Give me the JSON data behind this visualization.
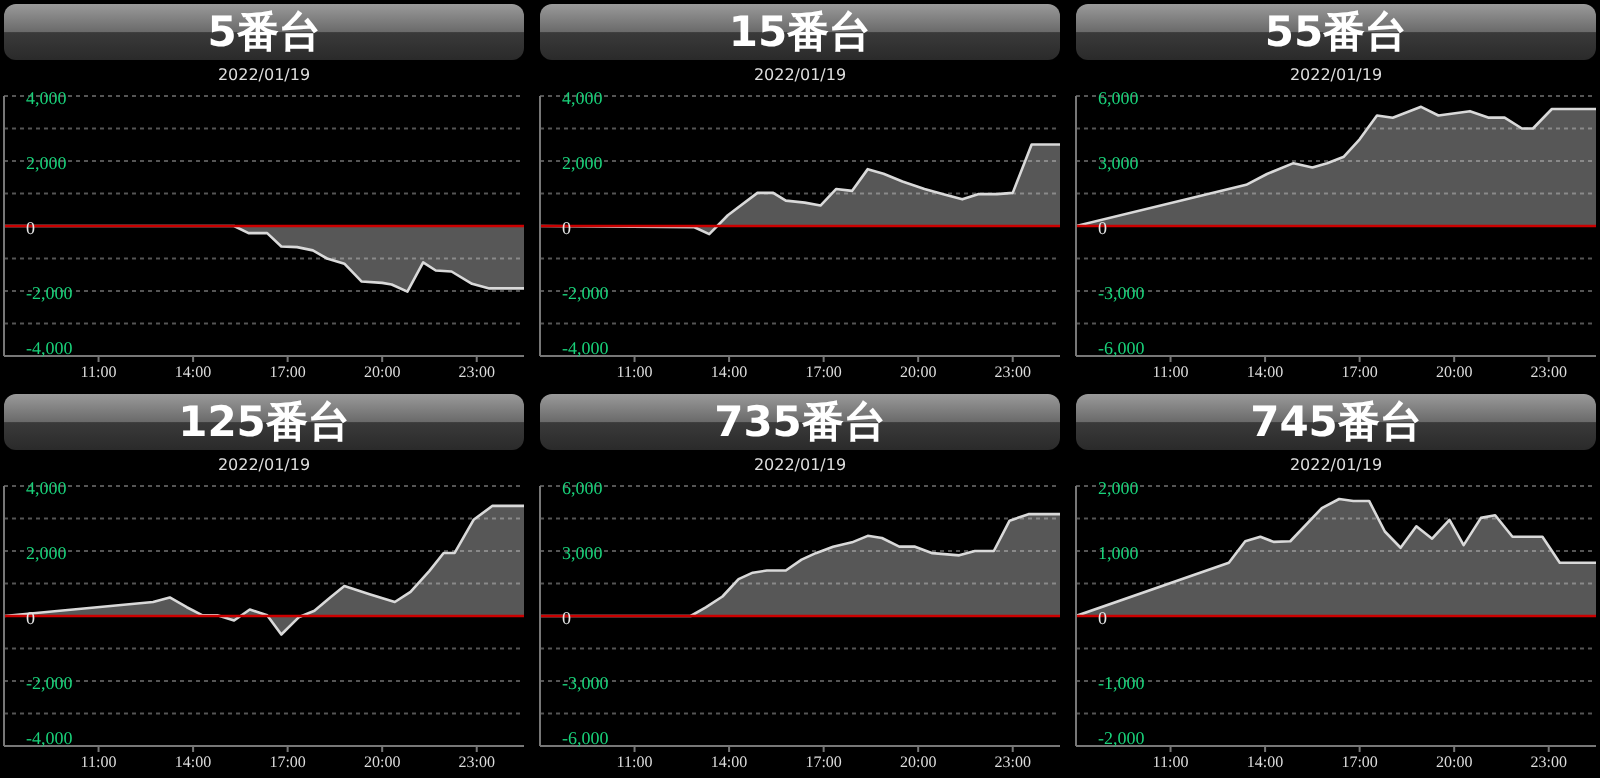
{
  "chart_data": [
    {
      "type": "area",
      "title": "5番台",
      "subtitle": "2022/01/19",
      "grid": "y",
      "xlim": [
        8,
        24.5
      ],
      "xticks": [
        {
          "value": 11,
          "label": "11:00"
        },
        {
          "value": 14,
          "label": "14:00"
        },
        {
          "value": 17,
          "label": "17:00"
        },
        {
          "value": 20,
          "label": "20:00"
        },
        {
          "value": 23,
          "label": "23:00"
        }
      ],
      "ylim": [
        -4000,
        4000
      ],
      "yticks": [
        {
          "value": -4000,
          "label": "-4,000"
        },
        {
          "value": -3000,
          "label": null
        },
        {
          "value": -2000,
          "label": "-2,000"
        },
        {
          "value": -1000,
          "label": null
        },
        {
          "value": 0,
          "label": "0"
        },
        {
          "value": 1000,
          "label": null
        },
        {
          "value": 2000,
          "label": "2,000"
        },
        {
          "value": 3000,
          "label": null
        },
        {
          "value": 4000,
          "label": "4,000"
        }
      ],
      "ref_lines": [
        {
          "axis": "y",
          "value": 0,
          "color": "#cc0000"
        }
      ],
      "series": [
        {
          "color": "#d9d9d9",
          "x": [
            8,
            15.3,
            15.76,
            16.35,
            16.8,
            17.3,
            17.8,
            18.25,
            18.8,
            19.35,
            20,
            20.3,
            20.8,
            21.3,
            21.7,
            22.2,
            22.85,
            23.4,
            24.5
          ],
          "values": [
            0,
            0,
            -220,
            -220,
            -630,
            -650,
            -750,
            -1000,
            -1160,
            -1710,
            -1750,
            -1800,
            -2020,
            -1120,
            -1370,
            -1400,
            -1780,
            -1920,
            -1920
          ]
        }
      ]
    },
    {
      "type": "area",
      "title": "15番台",
      "subtitle": "2022/01/19",
      "grid": "y",
      "xlim": [
        8,
        24.5
      ],
      "xticks": [
        {
          "value": 11,
          "label": "11:00"
        },
        {
          "value": 14,
          "label": "14:00"
        },
        {
          "value": 17,
          "label": "17:00"
        },
        {
          "value": 20,
          "label": "20:00"
        },
        {
          "value": 23,
          "label": "23:00"
        }
      ],
      "ylim": [
        -4000,
        4000
      ],
      "yticks": [
        {
          "value": -4000,
          "label": "-4,000"
        },
        {
          "value": -3000,
          "label": null
        },
        {
          "value": -2000,
          "label": "-2,000"
        },
        {
          "value": -1000,
          "label": null
        },
        {
          "value": 0,
          "label": "0"
        },
        {
          "value": 1000,
          "label": null
        },
        {
          "value": 2000,
          "label": "2,000"
        },
        {
          "value": 3000,
          "label": null
        },
        {
          "value": 4000,
          "label": "4,000"
        }
      ],
      "ref_lines": [
        {
          "axis": "y",
          "value": 0,
          "color": "#cc0000"
        }
      ],
      "series": [
        {
          "color": "#d9d9d9",
          "x": [
            8,
            12.9,
            13.37,
            13.96,
            14.9,
            15.4,
            15.8,
            16.4,
            16.9,
            17.4,
            17.9,
            18.4,
            18.9,
            19.5,
            20.2,
            20.8,
            21.4,
            21.9,
            22.5,
            23,
            23.6,
            24.5
          ],
          "values": [
            0,
            -40,
            -250,
            330,
            1020,
            1020,
            780,
            720,
            630,
            1140,
            1080,
            1750,
            1610,
            1370,
            1140,
            980,
            820,
            980,
            980,
            1020,
            2510,
            2510
          ]
        }
      ]
    },
    {
      "type": "area",
      "title": "55番台",
      "subtitle": "2022/01/19",
      "grid": "y",
      "xlim": [
        8,
        24.5
      ],
      "xticks": [
        {
          "value": 11,
          "label": "11:00"
        },
        {
          "value": 14,
          "label": "14:00"
        },
        {
          "value": 17,
          "label": "17:00"
        },
        {
          "value": 20,
          "label": "20:00"
        },
        {
          "value": 23,
          "label": "23:00"
        }
      ],
      "ylim": [
        -6000,
        6000
      ],
      "yticks": [
        {
          "value": -6000,
          "label": "-6,000"
        },
        {
          "value": -4500,
          "label": null
        },
        {
          "value": -3000,
          "label": "-3,000"
        },
        {
          "value": -1500,
          "label": null
        },
        {
          "value": 0,
          "label": "0"
        },
        {
          "value": 1500,
          "label": null
        },
        {
          "value": 3000,
          "label": "3,000"
        },
        {
          "value": 4500,
          "label": null
        },
        {
          "value": 6000,
          "label": "6,000"
        }
      ],
      "ref_lines": [
        {
          "axis": "y",
          "value": 0,
          "color": "#cc0000"
        }
      ],
      "series": [
        {
          "color": "#d9d9d9",
          "x": [
            8,
            13.4,
            14.06,
            14.9,
            15.5,
            15.97,
            16.5,
            17,
            17.55,
            18.05,
            18.95,
            19.5,
            20.5,
            21.1,
            21.6,
            22.15,
            22.5,
            23.1,
            24.5
          ],
          "values": [
            0,
            1900,
            2400,
            2900,
            2700,
            2900,
            3200,
            4000,
            5100,
            5000,
            5500,
            5100,
            5300,
            5000,
            5000,
            4500,
            4500,
            5400,
            5400
          ]
        }
      ]
    },
    {
      "type": "area",
      "title": "125番台",
      "subtitle": "2022/01/19",
      "grid": "y",
      "xlim": [
        8,
        24.5
      ],
      "xticks": [
        {
          "value": 11,
          "label": "11:00"
        },
        {
          "value": 14,
          "label": "14:00"
        },
        {
          "value": 17,
          "label": "17:00"
        },
        {
          "value": 20,
          "label": "20:00"
        },
        {
          "value": 23,
          "label": "23:00"
        }
      ],
      "ylim": [
        -4000,
        4000
      ],
      "yticks": [
        {
          "value": -4000,
          "label": "-4,000"
        },
        {
          "value": -3000,
          "label": null
        },
        {
          "value": -2000,
          "label": "-2,000"
        },
        {
          "value": -1000,
          "label": null
        },
        {
          "value": 0,
          "label": "0"
        },
        {
          "value": 1000,
          "label": null
        },
        {
          "value": 2000,
          "label": "2,000"
        },
        {
          "value": 3000,
          "label": null
        },
        {
          "value": 4000,
          "label": "4,000"
        }
      ],
      "ref_lines": [
        {
          "axis": "y",
          "value": 0,
          "color": "#cc0000"
        }
      ],
      "series": [
        {
          "color": "#d9d9d9",
          "x": [
            8,
            12.73,
            13.26,
            13.8,
            14.3,
            14.77,
            15.3,
            15.8,
            16.35,
            16.8,
            17.35,
            17.85,
            18.35,
            18.8,
            19.6,
            20.4,
            20.9,
            21.5,
            21.95,
            22.3,
            22.9,
            23.5,
            24.5
          ],
          "values": [
            0,
            430,
            570,
            270,
            20,
            20,
            -140,
            200,
            20,
            -570,
            -40,
            160,
            570,
            920,
            670,
            430,
            740,
            1390,
            1940,
            1940,
            2960,
            3390,
            3390
          ]
        }
      ]
    },
    {
      "type": "area",
      "title": "735番台",
      "subtitle": "2022/01/19",
      "grid": "y",
      "xlim": [
        8,
        24.5
      ],
      "xticks": [
        {
          "value": 11,
          "label": "11:00"
        },
        {
          "value": 14,
          "label": "14:00"
        },
        {
          "value": 17,
          "label": "17:00"
        },
        {
          "value": 20,
          "label": "20:00"
        },
        {
          "value": 23,
          "label": "23:00"
        }
      ],
      "ylim": [
        -6000,
        6000
      ],
      "yticks": [
        {
          "value": -6000,
          "label": "-6,000"
        },
        {
          "value": -4500,
          "label": null
        },
        {
          "value": -3000,
          "label": "-3,000"
        },
        {
          "value": -1500,
          "label": null
        },
        {
          "value": 0,
          "label": "0"
        },
        {
          "value": 1500,
          "label": null
        },
        {
          "value": 3000,
          "label": "3,000"
        },
        {
          "value": 4500,
          "label": null
        },
        {
          "value": 6000,
          "label": "6,000"
        }
      ],
      "ref_lines": [
        {
          "axis": "y",
          "value": 0,
          "color": "#cc0000"
        }
      ],
      "series": [
        {
          "color": "#d9d9d9",
          "x": [
            8,
            12.78,
            13.26,
            13.79,
            14.3,
            14.75,
            15.2,
            15.8,
            16.3,
            16.75,
            17.3,
            17.9,
            18.4,
            18.85,
            19.4,
            19.9,
            20.45,
            21.3,
            21.8,
            22.4,
            22.9,
            23.5,
            24.5
          ],
          "values": [
            0,
            0,
            400,
            900,
            1700,
            2000,
            2100,
            2100,
            2600,
            2900,
            3200,
            3400,
            3700,
            3600,
            3200,
            3200,
            2900,
            2800,
            3000,
            3000,
            4400,
            4700,
            4700
          ]
        }
      ]
    },
    {
      "type": "area",
      "title": "745番台",
      "subtitle": "2022/01/19",
      "grid": "y",
      "xlim": [
        8,
        24.5
      ],
      "xticks": [
        {
          "value": 11,
          "label": "11:00"
        },
        {
          "value": 14,
          "label": "14:00"
        },
        {
          "value": 17,
          "label": "17:00"
        },
        {
          "value": 20,
          "label": "20:00"
        },
        {
          "value": 23,
          "label": "23:00"
        }
      ],
      "ylim": [
        -2000,
        2000
      ],
      "yticks": [
        {
          "value": -2000,
          "label": "-2,000"
        },
        {
          "value": -1500,
          "label": null
        },
        {
          "value": -1000,
          "label": "-1,000"
        },
        {
          "value": -500,
          "label": null
        },
        {
          "value": 0,
          "label": "0"
        },
        {
          "value": 500,
          "label": null
        },
        {
          "value": 1000,
          "label": "1,000"
        },
        {
          "value": 1500,
          "label": null
        },
        {
          "value": 2000,
          "label": "2,000"
        }
      ],
      "ref_lines": [
        {
          "axis": "y",
          "value": 0,
          "color": "#cc0000"
        }
      ],
      "series": [
        {
          "color": "#d9d9d9",
          "x": [
            8,
            12.85,
            13.37,
            13.85,
            14.27,
            14.8,
            15.8,
            16.35,
            16.8,
            17.3,
            17.8,
            18.3,
            18.8,
            19.3,
            19.85,
            20.3,
            20.85,
            21.3,
            21.85,
            22.8,
            23.35,
            24.5
          ],
          "values": [
            0,
            820,
            1150,
            1220,
            1140,
            1150,
            1660,
            1800,
            1770,
            1770,
            1300,
            1050,
            1380,
            1190,
            1480,
            1090,
            1510,
            1550,
            1220,
            1220,
            820,
            820
          ]
        }
      ]
    }
  ]
}
